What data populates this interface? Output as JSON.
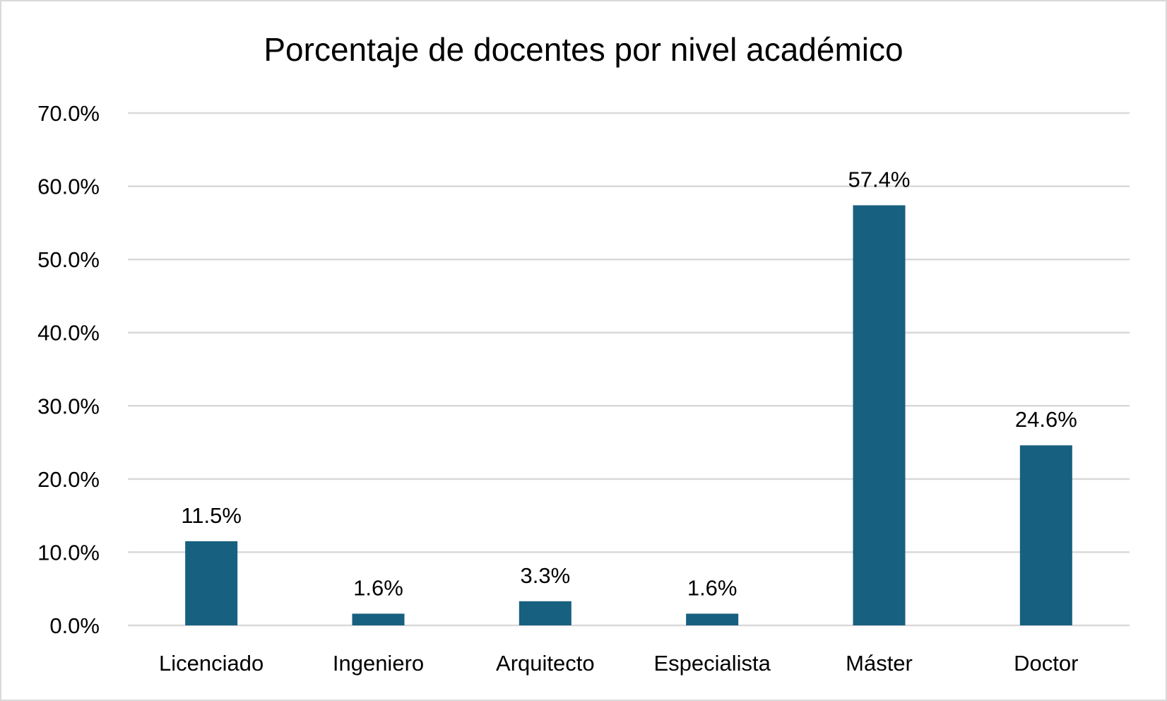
{
  "chart_data": {
    "type": "bar",
    "title": "Porcentaje de docentes por nivel académico",
    "xlabel": "",
    "ylabel": "",
    "categories": [
      "Licenciado",
      "Ingeniero",
      "Arquitecto",
      "Especialista",
      "Máster",
      "Doctor"
    ],
    "values": [
      11.5,
      1.6,
      3.3,
      1.6,
      57.4,
      24.6
    ],
    "data_labels": [
      "11.5%",
      "1.6%",
      "3.3%",
      "1.6%",
      "57.4%",
      "24.6%"
    ],
    "ylim": [
      0,
      70
    ],
    "yticks": [
      0,
      10,
      20,
      30,
      40,
      50,
      60,
      70
    ],
    "ytick_labels": [
      "0.0%",
      "10.0%",
      "20.0%",
      "30.0%",
      "40.0%",
      "50.0%",
      "60.0%",
      "70.0%"
    ],
    "grid": true,
    "legend": "none",
    "bar_color": "#17607f",
    "grid_color": "#d9d9d9"
  }
}
